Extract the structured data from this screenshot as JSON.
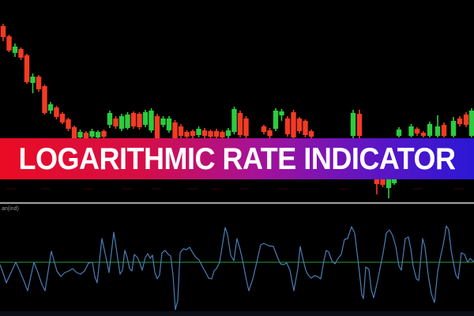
{
  "banner": {
    "title": "LOGARITHMIC RATE INDICATOR",
    "text_color": "#ffffff",
    "gradient_stops": [
      [
        "#ea0c24",
        "0%"
      ],
      [
        "#d50e47",
        "30%"
      ],
      [
        "#a4129b",
        "55%"
      ],
      [
        "#5f15c4",
        "78%"
      ],
      [
        "#2b17d6",
        "100%"
      ]
    ]
  },
  "indicator_panel": {
    "label": "an(ind)",
    "label_color": "#9a9a9a",
    "separator_color": "#9a9a9a",
    "baseline_color": "#2e9e3e",
    "line_color": "#4a7db5"
  },
  "colors": {
    "background": "#000000",
    "candle_up": "#2ccc3e",
    "candle_down": "#f33b24",
    "ghost_mark": "#300a06"
  },
  "chart_data": [
    {
      "type": "candlestick",
      "title": "",
      "note": "no axis tick labels are rendered in the image; values are pixel coordinates of the 600x400 canvas, y increases downward",
      "candles": [
        [
          4,
          33,
          47,
          30,
          52,
          "d"
        ],
        [
          11.5,
          46,
          64,
          44,
          66,
          "d"
        ],
        [
          19,
          59,
          67,
          55,
          72,
          "u"
        ],
        [
          26.5,
          62,
          73,
          60,
          76,
          "d"
        ],
        [
          34,
          70,
          104,
          68,
          106,
          "d"
        ],
        [
          41.5,
          97,
          105,
          93,
          118,
          "u"
        ],
        [
          49,
          97,
          113,
          95,
          116,
          "d"
        ],
        [
          56.5,
          109,
          143,
          107,
          145,
          "d"
        ],
        [
          64,
          132,
          140,
          129,
          144,
          "u"
        ],
        [
          71.5,
          136,
          148,
          134,
          151,
          "d"
        ],
        [
          79,
          144,
          155,
          142,
          157,
          "d"
        ],
        [
          86.5,
          151,
          163,
          149,
          166,
          "d"
        ],
        [
          94,
          161,
          176,
          159,
          178,
          "d"
        ],
        [
          101.5,
          167,
          174,
          164,
          177,
          "u"
        ],
        [
          109,
          168,
          175,
          166,
          177,
          "d"
        ],
        [
          116.5,
          166,
          173,
          163,
          176,
          "u"
        ],
        [
          124,
          167,
          174,
          165,
          176,
          "u"
        ],
        [
          131.5,
          166,
          173,
          164,
          175,
          "d"
        ],
        [
          139,
          143,
          158,
          140,
          162,
          "u"
        ],
        [
          146.5,
          150,
          160,
          147,
          163,
          "d"
        ],
        [
          154,
          147,
          163,
          144,
          166,
          "u"
        ],
        [
          161.5,
          145,
          162,
          142,
          164,
          "u"
        ],
        [
          169,
          143,
          160,
          141,
          163,
          "d"
        ],
        [
          176.5,
          144,
          161,
          142,
          164,
          "d"
        ],
        [
          184,
          142,
          158,
          139,
          161,
          "u"
        ],
        [
          191.5,
          140,
          165,
          137,
          168,
          "u"
        ],
        [
          199,
          147,
          178,
          144,
          180,
          "d"
        ],
        [
          206.5,
          150,
          158,
          147,
          161,
          "u"
        ],
        [
          214,
          150,
          165,
          147,
          168,
          "u"
        ],
        [
          221.5,
          155,
          176,
          152,
          179,
          "d"
        ],
        [
          229,
          160,
          172,
          157,
          175,
          "d"
        ],
        [
          236.5,
          167,
          173,
          165,
          176,
          "d"
        ],
        [
          244,
          166,
          172,
          164,
          175,
          "d"
        ],
        [
          251.5,
          163,
          171,
          160,
          174,
          "u"
        ],
        [
          259,
          165,
          172,
          162,
          175,
          "d"
        ],
        [
          266.5,
          166,
          173,
          164,
          176,
          "d"
        ],
        [
          274,
          166,
          173,
          163,
          176,
          "d"
        ],
        [
          281.5,
          167,
          174,
          165,
          177,
          "d"
        ],
        [
          289,
          165,
          172,
          162,
          175,
          "u"
        ],
        [
          296.5,
          138,
          167,
          135,
          170,
          "u"
        ],
        [
          304,
          143,
          171,
          140,
          174,
          "d"
        ],
        [
          311.5,
          150,
          172,
          147,
          175,
          "d"
        ],
        [
          319,
          178,
          200,
          176,
          205,
          "u"
        ],
        [
          326.5,
          180,
          202,
          178,
          207,
          "d"
        ],
        [
          334,
          160,
          167,
          158,
          170,
          "d"
        ],
        [
          341.5,
          165,
          172,
          162,
          175,
          "d"
        ],
        [
          349,
          140,
          163,
          137,
          166,
          "u"
        ],
        [
          356.5,
          141,
          146,
          138,
          153,
          "u"
        ],
        [
          364,
          150,
          170,
          147,
          173,
          "d"
        ],
        [
          371.5,
          142,
          174,
          139,
          177,
          "d"
        ],
        [
          379,
          150,
          166,
          148,
          169,
          "d"
        ],
        [
          386.5,
          153,
          171,
          151,
          174,
          "d"
        ],
        [
          394,
          166,
          173,
          164,
          176,
          "d"
        ],
        [
          401.5,
          182,
          202,
          180,
          206,
          "d"
        ],
        [
          409,
          184,
          203,
          182,
          206,
          "u"
        ],
        [
          416.5,
          186,
          205,
          184,
          208,
          "d"
        ],
        [
          424,
          181,
          199,
          179,
          203,
          "u"
        ],
        [
          431.5,
          184,
          204,
          182,
          207,
          "d"
        ],
        [
          439,
          182,
          201,
          180,
          205,
          "u"
        ],
        [
          447,
          143,
          172,
          139,
          175,
          "u"
        ],
        [
          455,
          144,
          172,
          139,
          175,
          "d"
        ],
        [
          462.5,
          180,
          212,
          178,
          216,
          "d"
        ],
        [
          470,
          185,
          218,
          183,
          222,
          "d"
        ],
        [
          477,
          200,
          233,
          198,
          246,
          "d"
        ],
        [
          484.5,
          226,
          234,
          224,
          237,
          "d"
        ],
        [
          492,
          226,
          238,
          224,
          251,
          "u"
        ],
        [
          499,
          227,
          232,
          225,
          234,
          "u"
        ],
        [
          505,
          164,
          172,
          161,
          174,
          "u"
        ],
        [
          513,
          183,
          201,
          181,
          204,
          "d"
        ],
        [
          520.5,
          160,
          172,
          157,
          174,
          "u"
        ],
        [
          528,
          163,
          169,
          161,
          172,
          "d"
        ],
        [
          536,
          168,
          172,
          166,
          174,
          "d"
        ],
        [
          544,
          157,
          172,
          154,
          174,
          "u"
        ],
        [
          554,
          160,
          172,
          146,
          174,
          "u"
        ],
        [
          562,
          158,
          172,
          155,
          174,
          "d"
        ],
        [
          574,
          153,
          172,
          148,
          174,
          "u"
        ],
        [
          582,
          150,
          157,
          147,
          160,
          "d"
        ],
        [
          590,
          145,
          158,
          142,
          161,
          "d"
        ],
        [
          597,
          140,
          172,
          137,
          174,
          "u"
        ]
      ],
      "ghost_dashes_y": 238,
      "ghost_dashes_x": [
        8,
        52,
        105,
        155,
        192,
        238,
        268,
        303,
        352,
        430,
        523,
        575
      ]
    },
    {
      "type": "line",
      "name": "logarithmic-rate-oscillator",
      "baseline_y": 332,
      "x_range": [
        0,
        600
      ],
      "points": [
        [
          0,
          335
        ],
        [
          3,
          343
        ],
        [
          8,
          358
        ],
        [
          14,
          345
        ],
        [
          20,
          332
        ],
        [
          25,
          343
        ],
        [
          30,
          355
        ],
        [
          35,
          368
        ],
        [
          43,
          332
        ],
        [
          48,
          345
        ],
        [
          53,
          360
        ],
        [
          57,
          368
        ],
        [
          65,
          318
        ],
        [
          72,
          343
        ],
        [
          77,
          350
        ],
        [
          82,
          345
        ],
        [
          87,
          343
        ],
        [
          92,
          340
        ],
        [
          97,
          345
        ],
        [
          102,
          347
        ],
        [
          107,
          343
        ],
        [
          112,
          333
        ],
        [
          117,
          332
        ],
        [
          120,
          350
        ],
        [
          123,
          358
        ],
        [
          126,
          330
        ],
        [
          129,
          302
        ],
        [
          132,
          316
        ],
        [
          135,
          330
        ],
        [
          138,
          345
        ],
        [
          141,
          320
        ],
        [
          144,
          294
        ],
        [
          147,
          313
        ],
        [
          150,
          334
        ],
        [
          152,
          347
        ],
        [
          155,
          342
        ],
        [
          158,
          317
        ],
        [
          161,
          326
        ],
        [
          164,
          340
        ],
        [
          167,
          343
        ],
        [
          170,
          322
        ],
        [
          174,
          326
        ],
        [
          177,
          333
        ],
        [
          180,
          342
        ],
        [
          184,
          326
        ],
        [
          187,
          321
        ],
        [
          190,
          327
        ],
        [
          193,
          323
        ],
        [
          196,
          345
        ],
        [
          199,
          353
        ],
        [
          202,
          348
        ],
        [
          205,
          320
        ],
        [
          209,
          317
        ],
        [
          213,
          322
        ],
        [
          216,
          324
        ],
        [
          219,
          348
        ],
        [
          222,
          392
        ],
        [
          225,
          380
        ],
        [
          228,
          320
        ],
        [
          232,
          315
        ],
        [
          236,
          316
        ],
        [
          240,
          313
        ],
        [
          244,
          320
        ],
        [
          248,
          326
        ],
        [
          252,
          329
        ],
        [
          256,
          337
        ],
        [
          260,
          344
        ],
        [
          264,
          352
        ],
        [
          268,
          353
        ],
        [
          271,
          343
        ],
        [
          274,
          340
        ],
        [
          278,
          332
        ],
        [
          282,
          307
        ],
        [
          285,
          288
        ],
        [
          288,
          297
        ],
        [
          292,
          323
        ],
        [
          296,
          330
        ],
        [
          300,
          302
        ],
        [
          304,
          316
        ],
        [
          308,
          334
        ],
        [
          312,
          355
        ],
        [
          315,
          368
        ],
        [
          320,
          353
        ],
        [
          325,
          332
        ],
        [
          330,
          310
        ],
        [
          334,
          308
        ],
        [
          340,
          311
        ],
        [
          346,
          312
        ],
        [
          351,
          325
        ],
        [
          355,
          334
        ],
        [
          359,
          335
        ],
        [
          363,
          333
        ],
        [
          367,
          342
        ],
        [
          372,
          368
        ],
        [
          377,
          340
        ],
        [
          380,
          312
        ],
        [
          384,
          330
        ],
        [
          387,
          342
        ],
        [
          390,
          348
        ],
        [
          394,
          352
        ],
        [
          398,
          349
        ],
        [
          402,
          350
        ],
        [
          406,
          353
        ],
        [
          410,
          330
        ],
        [
          413,
          317
        ],
        [
          416,
          319
        ],
        [
          420,
          330
        ],
        [
          424,
          334
        ],
        [
          428,
          327
        ],
        [
          432,
          322
        ],
        [
          436,
          303
        ],
        [
          440,
          302
        ],
        [
          445,
          287
        ],
        [
          449,
          295
        ],
        [
          452,
          320
        ],
        [
          455,
          345
        ],
        [
          458,
          373
        ],
        [
          460,
          378
        ],
        [
          463,
          338
        ],
        [
          467,
          341
        ],
        [
          470,
          367
        ],
        [
          473,
          377
        ],
        [
          478,
          355
        ],
        [
          482,
          335
        ],
        [
          485,
          320
        ],
        [
          489,
          295
        ],
        [
          493,
          291
        ],
        [
          497,
          298
        ],
        [
          501,
          312
        ],
        [
          505,
          337
        ],
        [
          508,
          342
        ],
        [
          513,
          302
        ],
        [
          517,
          300
        ],
        [
          520,
          315
        ],
        [
          523,
          337
        ],
        [
          527,
          353
        ],
        [
          530,
          355
        ],
        [
          535,
          302
        ],
        [
          538,
          313
        ],
        [
          542,
          348
        ],
        [
          546,
          372
        ],
        [
          550,
          383
        ],
        [
          554,
          344
        ],
        [
          558,
          323
        ],
        [
          561,
          310
        ],
        [
          565,
          286
        ],
        [
          568,
          291
        ],
        [
          571,
          316
        ],
        [
          574,
          333
        ],
        [
          577,
          348
        ],
        [
          580,
          353
        ],
        [
          584,
          320
        ],
        [
          588,
          322
        ],
        [
          592,
          332
        ],
        [
          595,
          327
        ],
        [
          598,
          330
        ],
        [
          600,
          331
        ]
      ]
    }
  ]
}
